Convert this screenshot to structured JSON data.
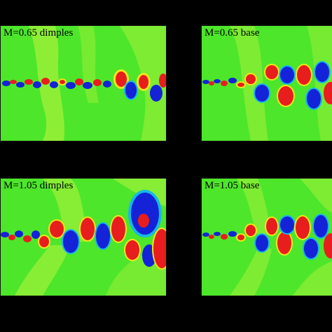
{
  "panels": [
    {
      "id": "p1",
      "label": "M=0.65 dimples"
    },
    {
      "id": "p2",
      "label": "M=0.65 base"
    },
    {
      "id": "p3",
      "label": "M=1.05 dimples"
    },
    {
      "id": "p4",
      "label": "M=1.05 base"
    }
  ],
  "colors": {
    "background": "#000000",
    "field_green": "#4de62a",
    "light_green": "#9ff03a",
    "yellow": "#f2e61c",
    "red": "#e81d1d",
    "blue": "#1422d8",
    "cyan": "#18b8e6",
    "teal": "#2ad8a0"
  }
}
